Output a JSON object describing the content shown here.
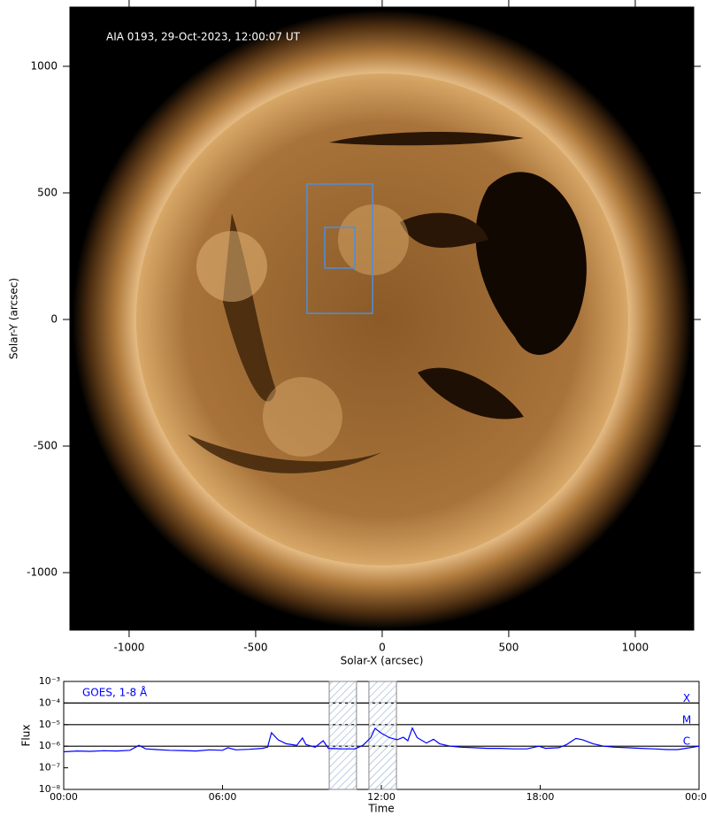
{
  "chart_data": [
    {
      "type": "image",
      "annotation": "AIA 0193, 29-Oct-2023, 12:00:07 UT",
      "xlabel": "Solar-X (arcsec)",
      "ylabel": "Solar-Y (arcsec)",
      "xlim": [
        -1234,
        1231
      ],
      "ylim": [
        -1227,
        1234
      ],
      "xticks": [
        -1000,
        -500,
        0,
        500,
        1000
      ],
      "yticks": [
        -1000,
        -500,
        0,
        500,
        1000
      ],
      "boxes": [
        {
          "x": [
            -297,
            -38
          ],
          "y": [
            24,
            535
          ]
        },
        {
          "x": [
            -227,
            -108
          ],
          "y": [
            203,
            364
          ]
        }
      ],
      "box_color": "#4a8fe0"
    },
    {
      "type": "line",
      "annotation": "GOES, 1-8 Å",
      "xlabel": "Time",
      "ylabel": "Flux",
      "xlim": [
        0,
        24
      ],
      "ylim": [
        1e-08,
        0.001
      ],
      "ylog": true,
      "xticks": [
        {
          "value": 0,
          "label": "00:00"
        },
        {
          "value": 6,
          "label": "06:00"
        },
        {
          "value": 12,
          "label": "12:00"
        },
        {
          "value": 18,
          "label": "18:00"
        },
        {
          "value": 24,
          "label": "00:00"
        }
      ],
      "yticks": [
        {
          "value": 1e-08,
          "label": "10⁻⁸"
        },
        {
          "value": 1e-07,
          "label": "10⁻⁷"
        },
        {
          "value": 1e-06,
          "label": "10⁻⁶"
        },
        {
          "value": 1e-05,
          "label": "10⁻⁵"
        },
        {
          "value": 0.0001,
          "label": "10⁻⁴"
        },
        {
          "value": 0.001,
          "label": "10⁻³"
        }
      ],
      "levels": [
        {
          "label": "X",
          "value": 0.0001
        },
        {
          "label": "M",
          "value": 1e-05
        },
        {
          "label": "C",
          "value": 1e-06
        }
      ],
      "intervals": [
        [
          10.03,
          11.06
        ],
        [
          11.53,
          12.57
        ]
      ],
      "color": "#0000ff",
      "x": [
        0,
        0.5,
        1,
        1.5,
        2,
        2.5,
        2.84,
        3.1,
        3.5,
        4,
        4.5,
        5,
        5.5,
        6,
        6.2,
        6.5,
        7,
        7.5,
        7.7,
        7.85,
        8.1,
        8.4,
        8.8,
        9.02,
        9.15,
        9.5,
        9.8,
        10,
        10.5,
        11,
        11.3,
        11.6,
        11.76,
        12,
        12.3,
        12.6,
        12.83,
        13,
        13.17,
        13.35,
        13.7,
        13.97,
        14.2,
        14.6,
        15,
        15.5,
        16,
        16.5,
        17,
        17.5,
        17.95,
        18.2,
        18.7,
        19,
        19.35,
        19.6,
        20,
        20.4,
        20.8,
        21.3,
        21.8,
        22.3,
        22.8,
        23.2,
        23.5,
        24
      ],
      "values": [
        5.5e-07,
        6e-07,
        5.8e-07,
        6.2e-07,
        6e-07,
        6.5e-07,
        1.1e-06,
        7.5e-07,
        7e-07,
        6.5e-07,
        6.3e-07,
        6e-07,
        6.8e-07,
        6.5e-07,
        8.5e-07,
        6.8e-07,
        7.2e-07,
        8e-07,
        9e-07,
        4.2e-06,
        2e-06,
        1.3e-06,
        1.1e-06,
        2.4e-06,
        1.2e-06,
        9e-07,
        1.8e-06,
        8e-07,
        7.5e-07,
        7.5e-07,
        1.1e-06,
        2.5e-06,
        6.7e-06,
        4e-06,
        2.5e-06,
        2e-06,
        2.6e-06,
        1.8e-06,
        7e-06,
        2.5e-06,
        1.4e-06,
        2.1e-06,
        1.3e-06,
        1e-06,
        9e-07,
        8.5e-07,
        8e-07,
        8e-07,
        7.5e-07,
        7.5e-07,
        1e-06,
        8e-07,
        8.5e-07,
        1.2e-06,
        2.3e-06,
        2e-06,
        1.3e-06,
        1e-06,
        9e-07,
        8.5e-07,
        8e-07,
        7.5e-07,
        7e-07,
        7e-07,
        8e-07,
        1e-06
      ]
    }
  ]
}
